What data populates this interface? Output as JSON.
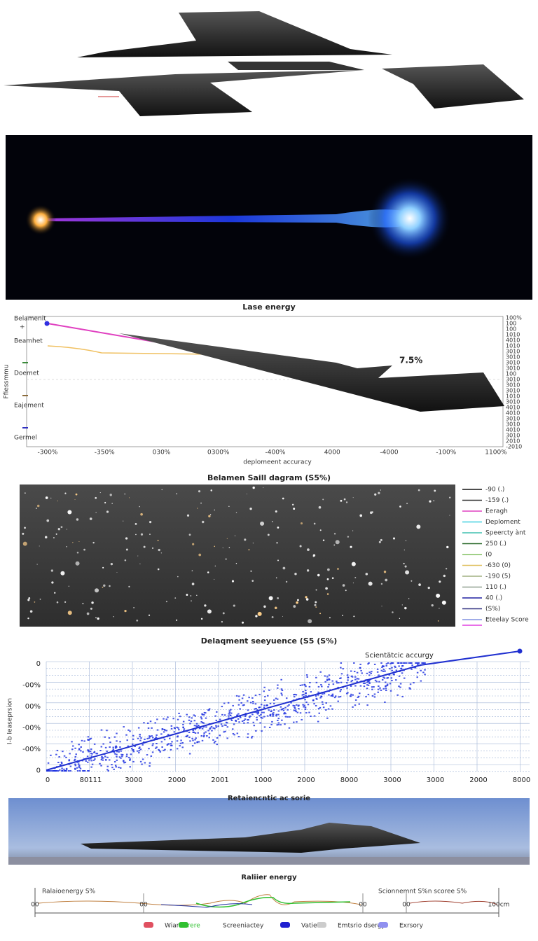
{
  "laser": {
    "title": "Lase energy"
  },
  "energy_chart": {
    "left_labels": [
      "Belamenit",
      "Beamhet",
      "Doemet",
      "Eajement",
      "Germel"
    ],
    "y_label": "Ffiessmmu",
    "right_ticks": [
      "100%",
      "100",
      "100",
      "1010",
      "4010",
      "1010",
      "3010",
      "3010",
      "3010",
      "3010",
      "100",
      "3010",
      "3010",
      "3010",
      "1010",
      "3010",
      "4010",
      "4010",
      "3010",
      "3010",
      "4010",
      "3010",
      "2010",
      "-2010"
    ],
    "x_ticks": [
      "-300%",
      "-350%",
      "030%",
      "0300%",
      "-400%",
      "4000",
      "-4000",
      "-100%",
      "1100%"
    ],
    "x_label": "deplomeent accuracy",
    "annotation": "7.5%"
  },
  "sail": {
    "title": "Belamen Saill dagram  (S5%)",
    "legend": [
      "-90 (.)",
      "-159 (.)",
      "Eeragh",
      "Deploment",
      "Speercty ànt",
      "250 (.)",
      "(0",
      "-630 (0)",
      "-190 (5)",
      "110 (.)",
      "40 (.)",
      "(S%)",
      "Eteelay Score"
    ]
  },
  "sequence_chart": {
    "title": "Delaqment seeyuence (S5 (S%)",
    "annotation": "Scientätcic accurgy",
    "y_label": "I-b Ieaseprsion",
    "y_ticks": [
      "0",
      "-00%",
      "00%",
      "-00%",
      "-00%",
      "0"
    ],
    "x_ticks": [
      "0",
      "80111",
      "3000",
      "2000",
      "2001",
      "1000",
      "2000",
      "8000",
      "3000",
      "3000",
      "2000",
      "8000"
    ]
  },
  "retain": {
    "title": "Retaiencntic ac sorie"
  },
  "relief_chart": {
    "title": "Raliier energy",
    "annotation_left": "Ralaioenergy S%",
    "annotation_right": "Scionnemnt S%n  scoree S%",
    "ticks": [
      "00",
      "00",
      "00",
      "00",
      "100cm"
    ],
    "legend": [
      "Wiant",
      "Screre",
      "Screeniactey",
      "Vatier",
      "Emtsrio dsergy",
      "Exrsory"
    ]
  }
}
